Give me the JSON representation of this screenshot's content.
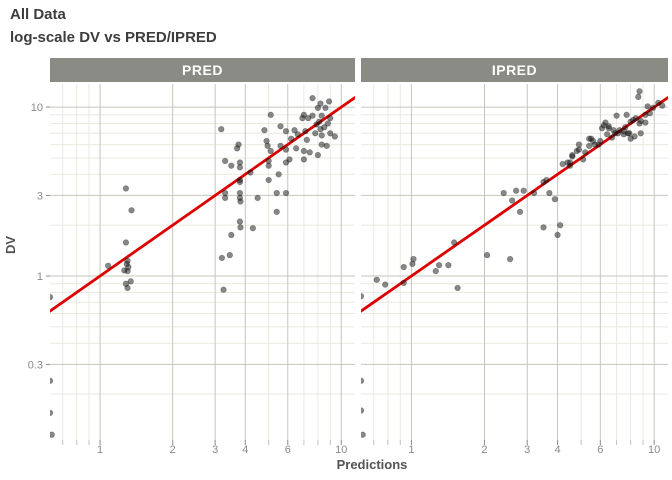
{
  "title": "All Data",
  "subtitle": "log-scale DV vs PRED/IPRED",
  "facets": [
    "PRED",
    "IPRED"
  ],
  "axes": {
    "x_label": "Predictions",
    "y_label": "DV",
    "x_ticks": [
      1,
      2,
      3,
      4,
      6,
      10
    ],
    "y_ticks": [
      0.3,
      1,
      3,
      10
    ],
    "x_domain": [
      0.62,
      11.4
    ],
    "y_domain": [
      0.107,
      13.7
    ],
    "log_x": true,
    "log_y": true
  },
  "colors": {
    "strip_bg": "#8b8b85",
    "strip_text": "#ffffff",
    "grid_major": "#c6c6bd",
    "grid_minor": "#e9e9e0",
    "tick_major": "#8a8a8a",
    "tick_minor": "#c2c2ba",
    "axis_text": "#8a8a8a",
    "identity_line": "#dd0000",
    "point": "#111111"
  },
  "chart_data": [
    {
      "type": "scatter",
      "facet": "PRED",
      "title": "All Data — log-scale DV vs PRED",
      "xlabel": "Predictions",
      "ylabel": "DV",
      "xlim": [
        0.62,
        11.4
      ],
      "ylim": [
        0.107,
        13.7
      ],
      "log_x": true,
      "log_y": true,
      "identity_line": true,
      "points": [
        [
          0.62,
          0.75
        ],
        [
          0.62,
          0.24
        ],
        [
          0.62,
          0.155
        ],
        [
          0.63,
          0.115
        ],
        [
          1.08,
          1.15
        ],
        [
          1.26,
          1.08
        ],
        [
          1.28,
          3.3
        ],
        [
          1.28,
          1.58
        ],
        [
          1.28,
          0.9
        ],
        [
          1.29,
          1.18
        ],
        [
          1.3,
          1.23
        ],
        [
          1.3,
          1.07
        ],
        [
          1.31,
          1.13
        ],
        [
          1.3,
          0.85
        ],
        [
          1.34,
          0.93
        ],
        [
          1.35,
          2.45
        ],
        [
          3.18,
          7.4
        ],
        [
          3.2,
          1.28
        ],
        [
          3.25,
          0.83
        ],
        [
          3.3,
          4.8
        ],
        [
          3.3,
          3.1
        ],
        [
          3.3,
          2.9
        ],
        [
          3.45,
          1.33
        ],
        [
          3.5,
          4.5
        ],
        [
          3.5,
          1.75
        ],
        [
          3.7,
          5.7
        ],
        [
          3.75,
          6.0
        ],
        [
          3.8,
          4.7
        ],
        [
          3.8,
          4.4
        ],
        [
          3.8,
          3.7
        ],
        [
          3.8,
          3.6
        ],
        [
          3.8,
          3.1
        ],
        [
          3.8,
          2.9
        ],
        [
          3.82,
          2.76
        ],
        [
          3.8,
          2.1
        ],
        [
          3.82,
          1.94
        ],
        [
          4.2,
          4.1
        ],
        [
          4.3,
          1.92
        ],
        [
          4.5,
          2.9
        ],
        [
          4.8,
          7.3
        ],
        [
          4.9,
          6.3
        ],
        [
          4.95,
          5.9
        ],
        [
          5.0,
          4.8
        ],
        [
          5.0,
          4.5
        ],
        [
          5.0,
          3.7
        ],
        [
          5.1,
          9.0
        ],
        [
          5.1,
          5.5
        ],
        [
          5.4,
          3.1
        ],
        [
          5.4,
          2.4
        ],
        [
          5.5,
          4.0
        ],
        [
          5.6,
          7.7
        ],
        [
          5.6,
          5.9
        ],
        [
          5.9,
          7.2
        ],
        [
          5.9,
          5.6
        ],
        [
          5.9,
          4.7
        ],
        [
          5.9,
          3.1
        ],
        [
          6.1,
          4.9
        ],
        [
          6.2,
          6.5
        ],
        [
          6.4,
          7.3
        ],
        [
          6.5,
          5.7
        ],
        [
          6.6,
          6.9
        ],
        [
          6.9,
          8.6
        ],
        [
          7.0,
          9.0
        ],
        [
          7.0,
          5.5
        ],
        [
          7.0,
          4.9
        ],
        [
          7.1,
          7.2
        ],
        [
          7.2,
          6.4
        ],
        [
          7.3,
          8.6
        ],
        [
          7.4,
          5.4
        ],
        [
          7.6,
          11.3
        ],
        [
          7.6,
          8.9
        ],
        [
          7.8,
          7.0
        ],
        [
          7.9,
          7.9
        ],
        [
          8.0,
          9.9
        ],
        [
          8.0,
          5.2
        ],
        [
          8.1,
          8.2
        ],
        [
          8.2,
          10.5
        ],
        [
          8.2,
          7.4
        ],
        [
          8.3,
          8.9
        ],
        [
          8.3,
          6.8
        ],
        [
          8.3,
          6.0
        ],
        [
          8.5,
          7.6
        ],
        [
          8.6,
          9.9
        ],
        [
          8.7,
          5.9
        ],
        [
          8.8,
          8.0
        ],
        [
          8.9,
          10.8
        ],
        [
          9.0,
          8.6
        ],
        [
          9.0,
          7.0
        ],
        [
          9.4,
          6.7
        ]
      ]
    },
    {
      "type": "scatter",
      "facet": "IPRED",
      "title": "All Data — log-scale DV vs IPRED",
      "xlabel": "Predictions",
      "ylabel": "DV",
      "xlim": [
        0.62,
        11.4
      ],
      "ylim": [
        0.107,
        13.7
      ],
      "log_x": true,
      "log_y": true,
      "identity_line": true,
      "points": [
        [
          0.62,
          0.76
        ],
        [
          0.62,
          0.24
        ],
        [
          0.62,
          0.16
        ],
        [
          0.63,
          0.115
        ],
        [
          0.72,
          0.95
        ],
        [
          0.78,
          0.89
        ],
        [
          0.93,
          1.13
        ],
        [
          0.93,
          0.91
        ],
        [
          1.01,
          1.18
        ],
        [
          1.02,
          1.26
        ],
        [
          1.26,
          1.07
        ],
        [
          1.3,
          1.16
        ],
        [
          1.42,
          1.16
        ],
        [
          1.5,
          1.58
        ],
        [
          1.55,
          0.85
        ],
        [
          2.05,
          1.33
        ],
        [
          2.55,
          1.26
        ],
        [
          2.4,
          3.1
        ],
        [
          2.6,
          2.8
        ],
        [
          2.7,
          3.2
        ],
        [
          2.8,
          2.4
        ],
        [
          2.9,
          3.2
        ],
        [
          3.2,
          3.1
        ],
        [
          3.5,
          3.6
        ],
        [
          3.5,
          1.94
        ],
        [
          3.6,
          3.7
        ],
        [
          3.7,
          3.1
        ],
        [
          3.9,
          2.85
        ],
        [
          4.0,
          1.75
        ],
        [
          4.1,
          2.0
        ],
        [
          4.2,
          4.6
        ],
        [
          4.4,
          4.7
        ],
        [
          4.5,
          4.5
        ],
        [
          4.5,
          4.7
        ],
        [
          4.6,
          5.1
        ],
        [
          4.6,
          5.2
        ],
        [
          4.8,
          5.5
        ],
        [
          4.9,
          5.6
        ],
        [
          4.9,
          6.0
        ],
        [
          5.1,
          4.9
        ],
        [
          5.2,
          5.4
        ],
        [
          5.4,
          6.5
        ],
        [
          5.4,
          5.9
        ],
        [
          5.5,
          6.5
        ],
        [
          5.6,
          6.3
        ],
        [
          5.7,
          6.0
        ],
        [
          5.9,
          6.0
        ],
        [
          6.0,
          6.3
        ],
        [
          6.1,
          7.5
        ],
        [
          6.2,
          7.8
        ],
        [
          6.3,
          8.1
        ],
        [
          6.4,
          6.9
        ],
        [
          6.5,
          7.5
        ],
        [
          6.5,
          7.7
        ],
        [
          6.7,
          6.6
        ],
        [
          6.8,
          7.3
        ],
        [
          6.9,
          7.0
        ],
        [
          7.0,
          8.9
        ],
        [
          7.1,
          7.0
        ],
        [
          7.2,
          7.3
        ],
        [
          7.5,
          7.2
        ],
        [
          7.5,
          6.9
        ],
        [
          7.6,
          7.6
        ],
        [
          7.7,
          9.0
        ],
        [
          7.8,
          7.0
        ],
        [
          7.9,
          7.0
        ],
        [
          8.0,
          8.2
        ],
        [
          8.0,
          6.5
        ],
        [
          8.2,
          8.4
        ],
        [
          8.3,
          6.7
        ],
        [
          8.4,
          8.6
        ],
        [
          8.6,
          11.5
        ],
        [
          8.7,
          12.4
        ],
        [
          8.7,
          8.0
        ],
        [
          8.8,
          8.3
        ],
        [
          8.8,
          7.0
        ],
        [
          9.2,
          9.0
        ],
        [
          9.2,
          8.1
        ],
        [
          9.4,
          10.1
        ],
        [
          9.6,
          9.2
        ],
        [
          9.9,
          9.9
        ],
        [
          10.4,
          10.6
        ],
        [
          10.8,
          10.2
        ]
      ]
    }
  ]
}
